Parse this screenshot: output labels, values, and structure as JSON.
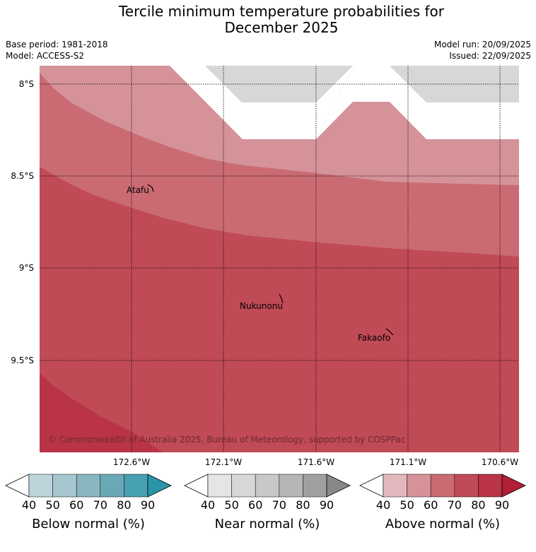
{
  "title": {
    "line1": "Tercile minimum temperature probabilities for",
    "line2": "December 2025"
  },
  "meta": {
    "base_period": "Base period: 1981-2018",
    "model": "Model: ACCESS-S2",
    "model_run": "Model run: 20/09/2025",
    "issued": "Issued: 22/09/2025"
  },
  "map": {
    "lat_labels": [
      "8°S",
      "8.5°S",
      "9°S",
      "9.5°S"
    ],
    "lon_labels": [
      "172.6°W",
      "172.1°W",
      "171.6°W",
      "171.1°W",
      "170.6°W"
    ],
    "places": [
      {
        "name": "Atafu"
      },
      {
        "name": "Nukunonu"
      },
      {
        "name": "Fakaofo"
      }
    ],
    "copyright": "© Commonwealth of Australia 2025, Bureau of Meteorology, supported by COSPPac",
    "colors": {
      "above_50_60": "#d59299",
      "above_60_70": "#ca6b73",
      "above_70_80": "#c04a56",
      "above_80_90": "#b93446",
      "near_normal_band": "#d7d7d7"
    }
  },
  "legend": [
    {
      "label": "Below normal (%)",
      "ticks": [
        "40",
        "50",
        "60",
        "70",
        "80",
        "90"
      ],
      "colors": [
        "#ffffff",
        "#bcd4da",
        "#a7c7ce",
        "#89b6c1",
        "#6aa8b5",
        "#47a0b1",
        "#2a95a8"
      ]
    },
    {
      "label": "Near normal (%)",
      "ticks": [
        "40",
        "50",
        "60",
        "70",
        "80",
        "90"
      ],
      "colors": [
        "#ffffff",
        "#e5e5e5",
        "#d7d7d7",
        "#c8c8c8",
        "#b6b6b6",
        "#a0a0a0",
        "#888888"
      ]
    },
    {
      "label": "Above normal (%)",
      "ticks": [
        "40",
        "50",
        "60",
        "70",
        "80",
        "90"
      ],
      "colors": [
        "#ffffff",
        "#e3b8bd",
        "#d59299",
        "#ca6b73",
        "#c04a56",
        "#b93446",
        "#b01e38"
      ]
    }
  ]
}
